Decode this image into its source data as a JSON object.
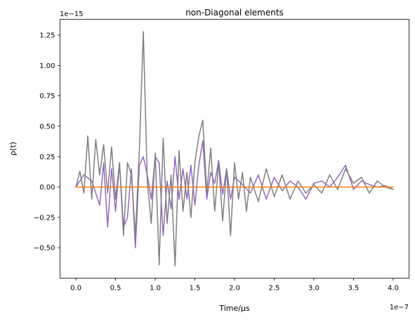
{
  "chart_data": {
    "type": "line",
    "title": "non-Diagonal elements",
    "xlabel": "Time/μs",
    "ylabel": "ρ(t)",
    "x_offset_label": "1e−7",
    "y_offset_label": "1e−15",
    "xlim": [
      -2e-08,
      4.2e-07
    ],
    "ylim": [
      -7.5e-16,
      1.38e-15
    ],
    "x_ticks": [
      0,
      5e-08,
      1e-07,
      1.5e-07,
      2e-07,
      2.5e-07,
      3e-07,
      3.5e-07,
      4e-07
    ],
    "x_tick_labels": [
      "0.0",
      "0.5",
      "1.0",
      "1.5",
      "2.0",
      "2.5",
      "3.0",
      "3.5",
      "4.0"
    ],
    "y_ticks": [
      -5e-16,
      -2.5e-16,
      0,
      2.5e-16,
      5e-16,
      7.5e-16,
      1e-15,
      1.25e-15
    ],
    "y_tick_labels": [
      "−0.50",
      "−0.25",
      "0.00",
      "0.25",
      "0.50",
      "0.75",
      "1.00",
      "1.25"
    ],
    "grid": false,
    "legend": "none",
    "series": [
      {
        "color": "#9467bd",
        "x": [
          0,
          1e-08,
          2e-08,
          3e-08,
          3.5e-08,
          4e-08,
          4.5e-08,
          5e-08,
          5.5e-08,
          6e-08,
          6.5e-08,
          7e-08,
          7.5e-08,
          8e-08,
          8.5e-08,
          9e-08,
          9.5e-08,
          1e-07,
          1.05e-07,
          1.1e-07,
          1.15e-07,
          1.2e-07,
          1.25e-07,
          1.3e-07,
          1.35e-07,
          1.4e-07,
          1.45e-07,
          1.5e-07,
          1.55e-07,
          1.6e-07,
          1.65e-07,
          1.7e-07,
          1.75e-07,
          1.8e-07,
          1.85e-07,
          1.9e-07,
          1.95e-07,
          2e-07,
          2.1e-07,
          2.2e-07,
          2.3e-07,
          2.4e-07,
          2.5e-07,
          2.6e-07,
          2.7e-07,
          2.8e-07,
          2.9e-07,
          3e-07,
          3.1e-07,
          3.2e-07,
          3.3e-07,
          3.4e-07,
          3.5e-07,
          3.6e-07,
          3.7e-07,
          3.8e-07,
          3.9e-07,
          4e-07
        ],
        "y": [
          0.0,
          1e-16,
          5e-17,
          -1.5e-16,
          2e-16,
          -3.3e-16,
          1.5e-16,
          -2e-16,
          2e-16,
          -3.3e-16,
          -2.5e-16,
          1.5e-16,
          -5e-16,
          1.8e-16,
          2.5e-16,
          1e-16,
          -1e-16,
          2.5e-16,
          2e-16,
          -4e-16,
          5e-17,
          -1.8e-16,
          2.5e-16,
          -1e-16,
          1.5e-16,
          -1e-16,
          1.8e-16,
          -1.5e-16,
          1.8e-16,
          3.8e-16,
          -1e-16,
          1.2e-16,
          3e-17,
          2.2e-16,
          -6e-17,
          1.5e-16,
          -1e-16,
          8e-17,
          2e-17,
          -5e-17,
          1e-16,
          -1e-16,
          8e-17,
          -3e-17,
          5e-17,
          0.0,
          -1e-16,
          3e-17,
          5e-17,
          0.0,
          8e-17,
          1.8e-16,
          -2e-17,
          5e-17,
          2e-17,
          0.0,
          1e-17,
          -2e-17
        ]
      },
      {
        "color": "#7f7f7f",
        "x": [
          0,
          5e-09,
          1e-08,
          1.5e-08,
          2e-08,
          2.5e-08,
          3e-08,
          3.5e-08,
          4e-08,
          4.5e-08,
          5e-08,
          5.5e-08,
          6e-08,
          6.5e-08,
          7e-08,
          7.5e-08,
          8e-08,
          8.5e-08,
          9e-08,
          9.5e-08,
          1e-07,
          1.05e-07,
          1.1e-07,
          1.15e-07,
          1.2e-07,
          1.25e-07,
          1.3e-07,
          1.35e-07,
          1.4e-07,
          1.45e-07,
          1.5e-07,
          1.55e-07,
          1.6e-07,
          1.65e-07,
          1.7e-07,
          1.75e-07,
          1.8e-07,
          1.85e-07,
          1.9e-07,
          1.95e-07,
          2e-07,
          2.05e-07,
          2.1e-07,
          2.15e-07,
          2.2e-07,
          2.3e-07,
          2.4e-07,
          2.5e-07,
          2.6e-07,
          2.7e-07,
          2.8e-07,
          2.9e-07,
          3e-07,
          3.1e-07,
          3.2e-07,
          3.3e-07,
          3.4e-07,
          3.5e-07,
          3.6e-07,
          3.7e-07,
          3.8e-07,
          3.9e-07,
          4e-07
        ],
        "y": [
          0.0,
          1.3e-16,
          -5e-17,
          4.2e-16,
          -1e-16,
          3.9e-16,
          1e-16,
          3.5e-16,
          -5e-17,
          3.3e-16,
          -1e-16,
          2e-16,
          -4e-16,
          2e-16,
          1e-16,
          -4e-16,
          3e-16,
          1.28e-15,
          5e-17,
          -3e-16,
          2.8e-16,
          -6.4e-16,
          4e-16,
          -3e-16,
          1e-16,
          -6.5e-16,
          3e-16,
          -2e-16,
          1.2e-16,
          -2.5e-16,
          2e-16,
          4.2e-16,
          5.5e-16,
          -5e-17,
          3.2e-16,
          -2e-16,
          2e-16,
          -2.8e-16,
          1.5e-16,
          -4e-16,
          2e-16,
          -1e-16,
          1.2e-16,
          -2e-16,
          8e-17,
          -1.2e-16,
          1.5e-16,
          -8e-17,
          1e-16,
          -1e-16,
          5e-17,
          -5e-17,
          2e-17,
          -5e-17,
          1e-16,
          -2e-17,
          1.5e-16,
          3e-17,
          8e-17,
          -5e-17,
          5e-17,
          0.0,
          -2e-17
        ]
      },
      {
        "color": "#ff7f0e",
        "x": [
          0,
          1e-07,
          2e-07,
          3e-07,
          4e-07
        ],
        "y": [
          0,
          0,
          0,
          0,
          0
        ]
      }
    ]
  }
}
